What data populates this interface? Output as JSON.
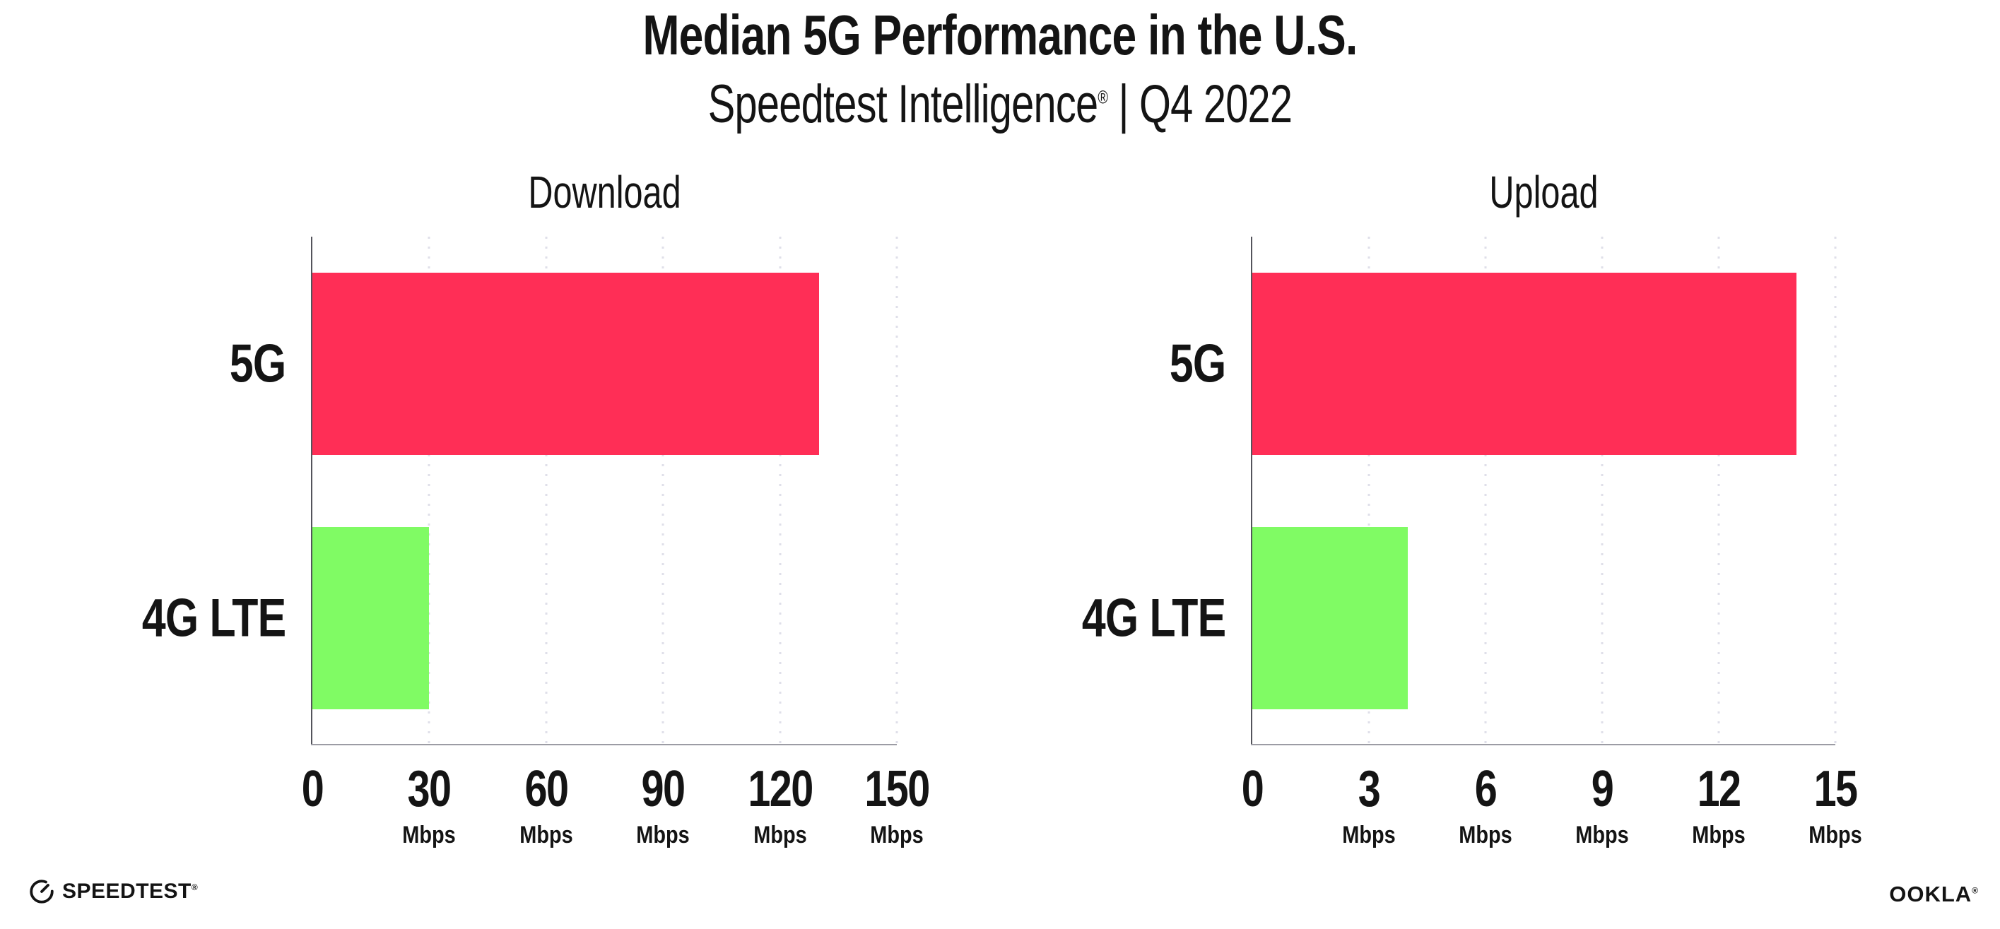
{
  "header": {
    "title": "Median 5G Performance in the U.S.",
    "subtitle_brand": "Speedtest Intelligence",
    "subtitle_reg": "®",
    "subtitle_rest": " | Q4 2022"
  },
  "chart_data": [
    {
      "type": "bar",
      "orientation": "horizontal",
      "title": "Download",
      "categories": [
        "5G",
        "4G LTE"
      ],
      "values": [
        130,
        30
      ],
      "unit": "Mbps",
      "xlim": [
        0,
        150
      ],
      "ticks": [
        0,
        30,
        60,
        90,
        120,
        150
      ],
      "bar_colors": [
        "#ff2e56",
        "#80fb64"
      ],
      "grid": "dotted-vertical-gridlines",
      "legend": "none"
    },
    {
      "type": "bar",
      "orientation": "horizontal",
      "title": "Upload",
      "categories": [
        "5G",
        "4G LTE"
      ],
      "values": [
        14,
        4
      ],
      "unit": "Mbps",
      "xlim": [
        0,
        15
      ],
      "ticks": [
        0,
        3,
        6,
        9,
        12,
        15
      ],
      "bar_colors": [
        "#ff2e56",
        "#80fb64"
      ],
      "grid": "dotted-vertical-gridlines",
      "legend": "none"
    }
  ],
  "footer": {
    "speedtest_label": "SPEEDTEST",
    "speedtest_reg": "®",
    "ookla_label": "OOKLA",
    "ookla_reg": "®"
  },
  "colors": {
    "bar_5g": "#ff2e56",
    "bar_4g_lte": "#80fb64",
    "text": "#141414",
    "y_axis": "#54545c",
    "x_axis": "#9c9ca4",
    "gridline": "#dfdfe9",
    "background": "#ffffff"
  }
}
